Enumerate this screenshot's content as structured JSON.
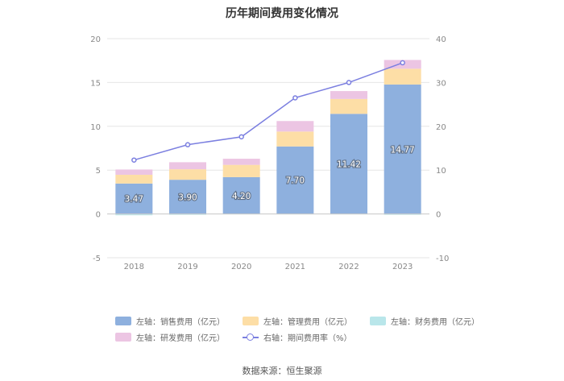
{
  "chart_data": {
    "type": "bar",
    "title": "历年期间费用变化情况",
    "categories": [
      "2018",
      "2019",
      "2020",
      "2021",
      "2022",
      "2023"
    ],
    "stacked": true,
    "left_axis": {
      "min": -5,
      "max": 20,
      "ticks": [
        -5,
        0,
        5,
        10,
        15,
        20
      ]
    },
    "right_axis": {
      "min": -10,
      "max": 40,
      "ticks": [
        -10,
        0,
        10,
        20,
        30,
        40
      ]
    },
    "grid": true,
    "legend_position": "bottom",
    "series": [
      {
        "name": "左轴：销售费用（亿元）",
        "axis": "left",
        "type": "bar",
        "color": "#8eb0de",
        "values": [
          3.47,
          3.9,
          4.2,
          7.7,
          11.42,
          14.77
        ],
        "labels": [
          "3.47",
          "3.90",
          "4.20",
          "7.70",
          "11.42",
          "14.77"
        ]
      },
      {
        "name": "左轴：管理费用（亿元）",
        "axis": "left",
        "type": "bar",
        "color": "#fddea6",
        "values": [
          1.0,
          1.2,
          1.4,
          1.7,
          1.7,
          1.8
        ]
      },
      {
        "name": "左轴：财务费用（亿元）",
        "axis": "left",
        "type": "bar",
        "color": "#b9e6ea",
        "values": [
          -0.15,
          -0.1,
          -0.05,
          -0.05,
          -0.05,
          -0.1
        ]
      },
      {
        "name": "左轴：研发费用（亿元）",
        "axis": "left",
        "type": "bar",
        "color": "#ecc5e3",
        "values": [
          0.6,
          0.8,
          0.7,
          1.2,
          0.9,
          1.0
        ]
      },
      {
        "name": "右轴：期间费用率（%）",
        "axis": "right",
        "type": "line",
        "color": "#7b7fe0",
        "values": [
          12.3,
          15.8,
          17.6,
          26.5,
          30.0,
          34.5
        ]
      }
    ]
  },
  "source": "数据来源：恒生聚源"
}
